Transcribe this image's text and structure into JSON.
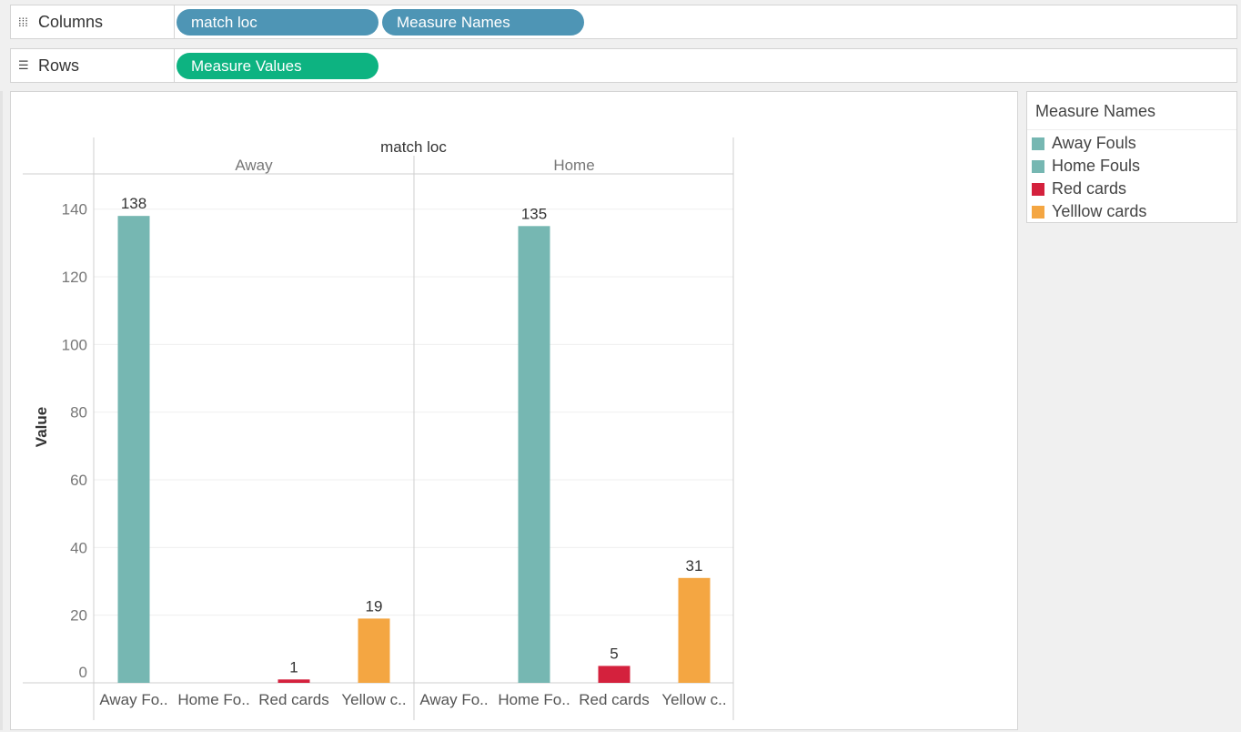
{
  "shelves": {
    "columns": {
      "label": "Columns",
      "icon": "columns-icon",
      "pills": [
        "match loc",
        "Measure Names"
      ]
    },
    "rows": {
      "label": "Rows",
      "icon": "rows-icon",
      "pills": [
        "Measure Values"
      ]
    }
  },
  "legend": {
    "title": "Measure Names",
    "items": [
      {
        "label": "Away Fouls",
        "color": "#76b7b2"
      },
      {
        "label": "Home Fouls",
        "color": "#76b7b2"
      },
      {
        "label": "Red cards",
        "color": "#d4213d"
      },
      {
        "label": "Yelllow cards",
        "color": "#f4a642"
      }
    ]
  },
  "chart_data": {
    "type": "bar",
    "title": "match loc",
    "ylabel": "Value",
    "ylim": [
      0,
      148
    ],
    "yticks": [
      0,
      20,
      40,
      60,
      80,
      100,
      120,
      140
    ],
    "groups": [
      "Away",
      "Home"
    ],
    "categories": [
      "Away Fo..",
      "Home Fo..",
      "Red cards",
      "Yellow c.."
    ],
    "category_colors": [
      "#76b7b2",
      "#76b7b2",
      "#d4213d",
      "#f4a642"
    ],
    "values": {
      "Away": [
        138,
        null,
        1,
        19
      ],
      "Home": [
        null,
        135,
        5,
        31
      ]
    },
    "grid": true
  }
}
